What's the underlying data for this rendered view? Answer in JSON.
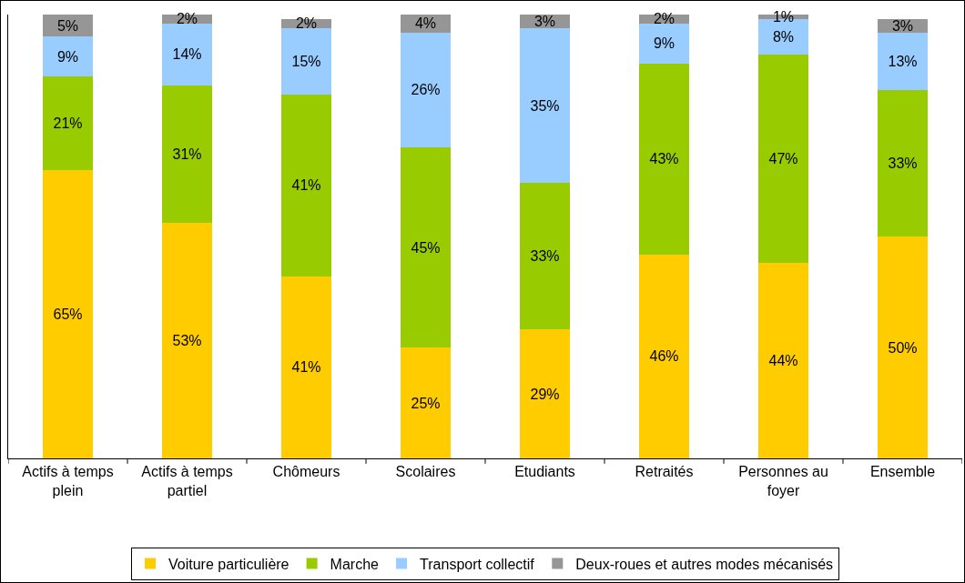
{
  "chart_data": {
    "type": "bar",
    "stacked": true,
    "categories": [
      "Actifs à temps plein",
      "Actifs à temps partiel",
      "Chômeurs",
      "Scolaires",
      "Etudiants",
      "Retraités",
      "Personnes au foyer",
      "Ensemble"
    ],
    "series": [
      {
        "name": "Voiture particulière",
        "color": "#ffcc00",
        "values": [
          65,
          53,
          41,
          25,
          29,
          46,
          44,
          50
        ],
        "value_labels": [
          "65%",
          "53%",
          "41%",
          "25%",
          "29%",
          "46%",
          "44%",
          "50%"
        ]
      },
      {
        "name": "Marche",
        "color": "#99cc00",
        "values": [
          21,
          31,
          41,
          45,
          33,
          43,
          47,
          33
        ],
        "value_labels": [
          "21%",
          "31%",
          "41%",
          "45%",
          "33%",
          "43%",
          "47%",
          "33%"
        ]
      },
      {
        "name": "Transport collectif",
        "color": "#99ccff",
        "values": [
          9,
          14,
          15,
          26,
          35,
          9,
          8,
          13
        ],
        "value_labels": [
          "9%",
          "14%",
          "15%",
          "26%",
          "35%",
          "9%",
          "8%",
          "13%"
        ]
      },
      {
        "name": "Deux-roues et autres modes mécanisés",
        "color": "#969696",
        "values": [
          5,
          2,
          2,
          4,
          3,
          2,
          1,
          3
        ],
        "value_labels": [
          "5%",
          "2%",
          "2%",
          "4%",
          "3%",
          "2%",
          "1%",
          "3%"
        ]
      }
    ],
    "tick_labels": "x",
    "legend": "bottom"
  }
}
